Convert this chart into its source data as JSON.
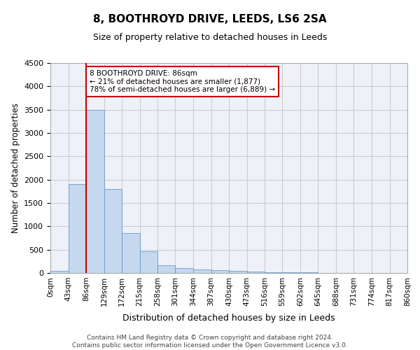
{
  "title": "8, BOOTHROYD DRIVE, LEEDS, LS6 2SA",
  "subtitle": "Size of property relative to detached houses in Leeds",
  "xlabel": "Distribution of detached houses by size in Leeds",
  "ylabel": "Number of detached properties",
  "bin_edges": [
    0,
    43,
    86,
    129,
    172,
    215,
    258,
    301,
    344,
    387,
    430,
    473,
    516,
    559,
    602,
    645,
    688,
    731,
    774,
    817,
    860
  ],
  "bar_heights": [
    50,
    1900,
    3500,
    1800,
    850,
    460,
    160,
    100,
    80,
    60,
    40,
    25,
    15,
    10,
    8,
    6,
    5,
    4,
    3,
    2
  ],
  "bar_color": "#c5d8ee",
  "bar_edgecolor": "#6699cc",
  "property_line_x": 86,
  "property_line_color": "#cc0000",
  "annotation_text": "8 BOOTHROYD DRIVE: 86sqm\n← 21% of detached houses are smaller (1,877)\n78% of semi-detached houses are larger (6,889) →",
  "annotation_box_color": "#cc0000",
  "ylim": [
    0,
    4500
  ],
  "yticks": [
    0,
    500,
    1000,
    1500,
    2000,
    2500,
    3000,
    3500,
    4000,
    4500
  ],
  "grid_color": "#cccccc",
  "background_color": "#eef2f8",
  "footer_line1": "Contains HM Land Registry data © Crown copyright and database right 2024.",
  "footer_line2": "Contains public sector information licensed under the Open Government Licence v3.0.",
  "tick_labels": [
    "0sqm",
    "43sqm",
    "86sqm",
    "129sqm",
    "172sqm",
    "215sqm",
    "258sqm",
    "301sqm",
    "344sqm",
    "387sqm",
    "430sqm",
    "473sqm",
    "516sqm",
    "559sqm",
    "602sqm",
    "645sqm",
    "688sqm",
    "731sqm",
    "774sqm",
    "817sqm",
    "860sqm"
  ]
}
